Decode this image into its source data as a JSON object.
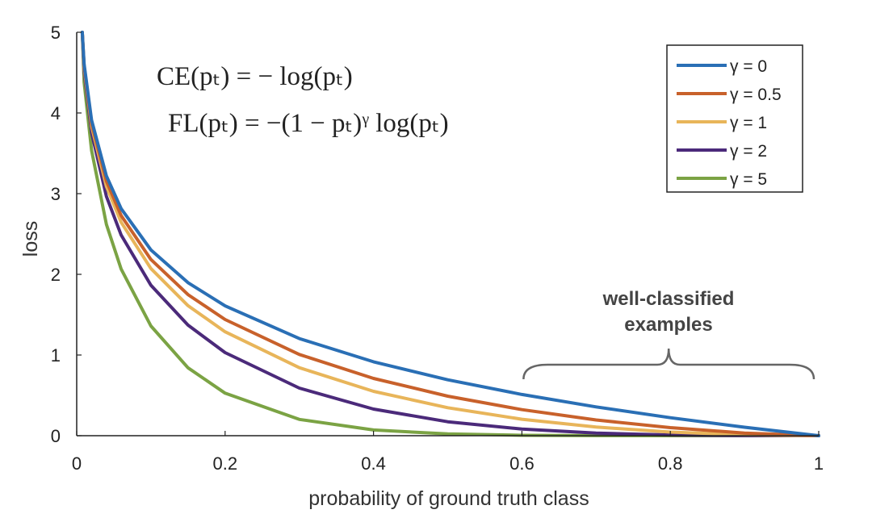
{
  "chart_data": {
    "type": "line",
    "title": "",
    "xlabel": "probability of ground truth class",
    "ylabel": "loss",
    "xlim": [
      0,
      1
    ],
    "ylim": [
      0,
      5
    ],
    "xticks": [
      "0",
      "0.2",
      "0.4",
      "0.6",
      "0.8",
      "1"
    ],
    "yticks": [
      "0",
      "1",
      "2",
      "3",
      "4",
      "5"
    ],
    "grid": false,
    "legend_position": "top-right",
    "formulas": [
      "CE(pₜ) = − log(pₜ)",
      "FL(pₜ) = −(1 − pₜ)ᵞ log(pₜ)"
    ],
    "annotation": {
      "line1": "well-classified",
      "line2": "examples",
      "x_range": [
        0.6,
        1.0
      ]
    },
    "x": [
      0.01,
      0.02,
      0.04,
      0.06,
      0.1,
      0.15,
      0.2,
      0.3,
      0.4,
      0.5,
      0.6,
      0.7,
      0.8,
      0.9,
      1.0
    ],
    "series": [
      {
        "name": "γ = 0",
        "gamma": 0,
        "color": "#2a6fb5",
        "values": [
          4.605,
          3.912,
          3.219,
          2.813,
          2.303,
          1.897,
          1.609,
          1.204,
          0.916,
          0.693,
          0.511,
          0.357,
          0.223,
          0.105,
          0.0
        ]
      },
      {
        "name": "γ = 0.5",
        "gamma": 0.5,
        "color": "#c8612b",
        "values": [
          4.582,
          3.873,
          3.154,
          2.727,
          2.184,
          1.749,
          1.44,
          1.007,
          0.71,
          0.49,
          0.323,
          0.195,
          0.1,
          0.033,
          0.0
        ]
      },
      {
        "name": "γ = 1",
        "gamma": 1,
        "color": "#e8b55a",
        "values": [
          4.559,
          3.834,
          3.09,
          2.644,
          2.072,
          1.612,
          1.288,
          0.843,
          0.55,
          0.347,
          0.204,
          0.107,
          0.045,
          0.011,
          0.0
        ]
      },
      {
        "name": "γ = 2",
        "gamma": 2,
        "color": "#4b2a7a",
        "values": [
          4.514,
          3.757,
          2.966,
          2.486,
          1.865,
          1.371,
          1.03,
          0.59,
          0.33,
          0.173,
          0.082,
          0.032,
          0.009,
          0.001,
          0.0
        ]
      },
      {
        "name": "γ = 5",
        "gamma": 5,
        "color": "#7ba344",
        "values": [
          4.38,
          3.537,
          2.619,
          2.064,
          1.36,
          0.842,
          0.527,
          0.202,
          0.071,
          0.022,
          0.005,
          0.001,
          0.0,
          0.0,
          0.0
        ]
      }
    ]
  }
}
